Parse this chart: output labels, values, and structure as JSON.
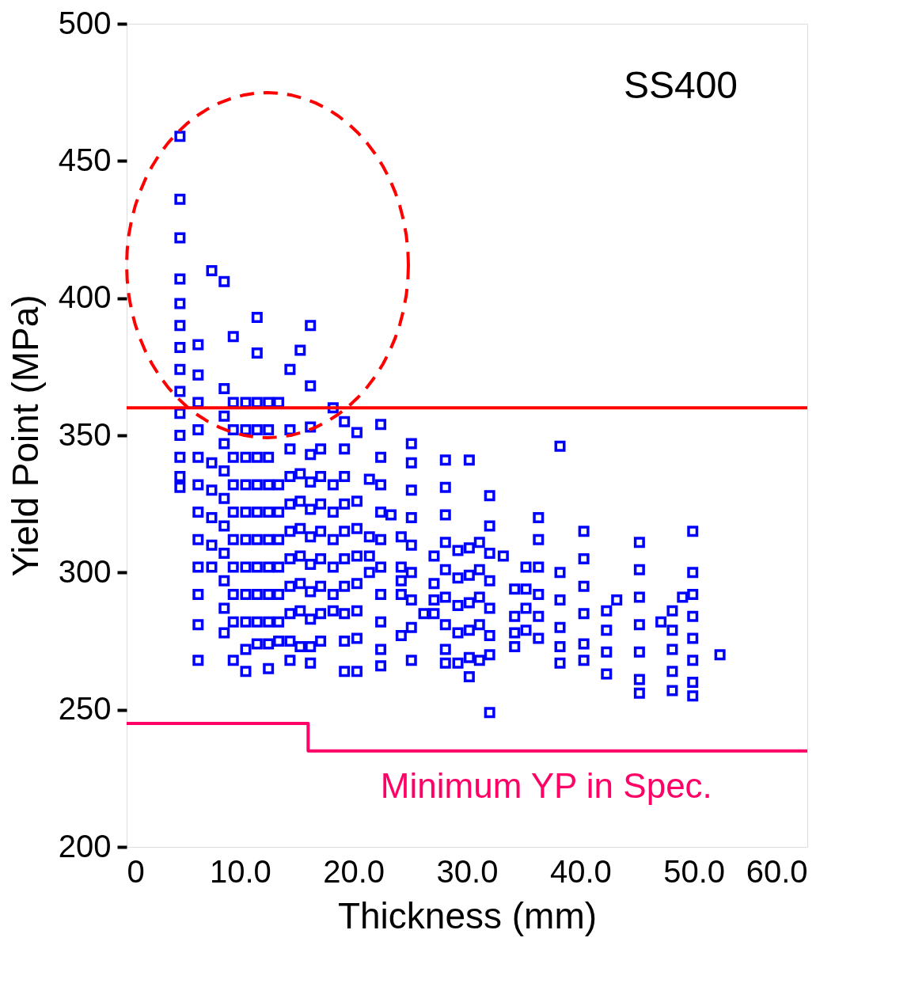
{
  "chart_data": {
    "type": "scatter",
    "xlabel": "Thickness (mm)",
    "ylabel": "Yield Point (MPa)",
    "xlim": [
      0,
      60
    ],
    "ylim": [
      200,
      500
    ],
    "xticks": [
      0,
      {
        "value": 10,
        "label": "10.0"
      },
      {
        "value": 20,
        "label": "20.0"
      },
      {
        "value": 30,
        "label": "30.0"
      },
      {
        "value": 40,
        "label": "40.0"
      },
      {
        "value": 50,
        "label": "50.0"
      },
      {
        "value": 60,
        "label": "60.0"
      }
    ],
    "yticks": [
      200,
      250,
      300,
      350,
      400,
      450,
      500
    ],
    "grid": false,
    "marker": "square",
    "annotations": [
      "SS400",
      {
        "text": "Minimum YP in Spec.",
        "x": 37,
        "y": 235
      }
    ],
    "ref_lines": [
      {
        "axis": "y",
        "value": 360,
        "color": "#ff0000"
      }
    ],
    "series": [
      {
        "color": "#0000ff",
        "x": [
          4.7,
          4.7,
          4.7,
          4.7,
          4.7,
          4.7,
          4.7,
          4.7,
          4.7,
          4.7,
          4.7,
          4.7,
          4.7,
          4.7
        ],
        "values": [
          459,
          436,
          422,
          407,
          398,
          390,
          382,
          374,
          366,
          358,
          350,
          342,
          335,
          331
        ]
      },
      {
        "color": "#0000ff",
        "x": [
          6.3,
          6.3,
          6.3,
          6.3,
          6.3,
          6.3,
          6.3,
          6.3,
          6.3,
          6.3,
          6.3,
          6.3
        ],
        "values": [
          383,
          372,
          362,
          352,
          342,
          332,
          322,
          312,
          302,
          292,
          281,
          268
        ]
      },
      {
        "color": "#0000ff",
        "x": [
          7.5,
          7.5,
          7.5,
          7.5,
          7.5,
          7.5
        ],
        "values": [
          410,
          340,
          330,
          320,
          310,
          302
        ]
      },
      {
        "color": "#0000ff",
        "x": [
          8.6,
          8.6,
          8.6,
          8.6,
          8.6,
          8.6,
          8.6,
          8.6,
          8.6,
          8.6,
          8.6
        ],
        "values": [
          406,
          367,
          357,
          347,
          337,
          327,
          317,
          307,
          297,
          287,
          278
        ]
      },
      {
        "color": "#0000ff",
        "x": [
          9.4,
          9.4,
          9.4,
          9.4,
          9.4,
          9.4,
          9.4,
          9.4,
          9.4,
          9.4,
          9.4
        ],
        "values": [
          386,
          362,
          352,
          342,
          332,
          322,
          312,
          302,
          292,
          282,
          268
        ]
      },
      {
        "color": "#0000ff",
        "x": [
          10.5,
          10.5,
          10.5,
          10.5,
          10.5,
          10.5,
          10.5,
          10.5,
          10.5,
          10.5,
          10.5
        ],
        "values": [
          362,
          352,
          342,
          332,
          322,
          312,
          302,
          292,
          282,
          272,
          264
        ]
      },
      {
        "color": "#0000ff",
        "x": [
          11.5,
          11.5,
          11.5,
          11.5,
          11.5,
          11.5,
          11.5,
          11.5,
          11.5,
          11.5,
          11.5,
          11.5
        ],
        "values": [
          393,
          380,
          362,
          352,
          342,
          332,
          322,
          312,
          302,
          292,
          282,
          274
        ]
      },
      {
        "color": "#0000ff",
        "x": [
          12.5,
          12.5,
          12.5,
          12.5,
          12.5,
          12.5,
          12.5,
          12.5,
          12.5,
          12.5,
          12.5
        ],
        "values": [
          362,
          352,
          342,
          332,
          322,
          312,
          302,
          292,
          282,
          274,
          265
        ]
      },
      {
        "color": "#0000ff",
        "x": [
          13.4,
          13.4,
          13.4,
          13.4,
          13.4,
          13.4,
          13.4,
          13.4
        ],
        "values": [
          362,
          332,
          322,
          312,
          302,
          292,
          282,
          275
        ]
      },
      {
        "color": "#0000ff",
        "x": [
          14.4,
          14.4,
          14.4,
          14.4,
          14.4,
          14.4,
          14.4,
          14.4,
          14.4,
          14.4,
          14.4
        ],
        "values": [
          374,
          352,
          345,
          335,
          325,
          315,
          305,
          295,
          285,
          275,
          268
        ]
      },
      {
        "color": "#0000ff",
        "x": [
          15.3,
          15.3,
          15.3,
          15.3,
          15.3,
          15.3,
          15.3,
          15.3
        ],
        "values": [
          381,
          336,
          326,
          316,
          306,
          296,
          286,
          273
        ]
      },
      {
        "color": "#0000ff",
        "x": [
          16.2,
          16.2,
          16.2,
          16.2,
          16.2,
          16.2,
          16.2,
          16.2,
          16.2,
          16.2,
          16.2,
          16.2
        ],
        "values": [
          390,
          368,
          353,
          343,
          333,
          323,
          313,
          303,
          293,
          283,
          273,
          267
        ]
      },
      {
        "color": "#0000ff",
        "x": [
          17.1,
          17.1,
          17.1,
          17.1,
          17.1,
          17.1,
          17.1,
          17.1
        ],
        "values": [
          345,
          335,
          325,
          315,
          305,
          295,
          285,
          275
        ]
      },
      {
        "color": "#0000ff",
        "x": [
          18.2,
          18.2,
          18.2,
          18.2,
          18.2,
          18.2,
          18.2
        ],
        "values": [
          360,
          332,
          322,
          312,
          302,
          292,
          286
        ]
      },
      {
        "color": "#0000ff",
        "x": [
          19.2,
          19.2,
          19.2,
          19.2,
          19.2,
          19.2,
          19.2,
          19.2,
          19.2,
          19.2
        ],
        "values": [
          355,
          345,
          335,
          325,
          315,
          305,
          295,
          285,
          275,
          264
        ]
      },
      {
        "color": "#0000ff",
        "x": [
          20.3,
          20.3,
          20.3,
          20.3,
          20.3,
          20.3,
          20.3,
          20.3
        ],
        "values": [
          351,
          326,
          316,
          306,
          296,
          286,
          276,
          264
        ]
      },
      {
        "color": "#0000ff",
        "x": [
          21.4,
          21.4,
          21.4,
          21.4
        ],
        "values": [
          334,
          313,
          306,
          300
        ]
      },
      {
        "color": "#0000ff",
        "x": [
          22.4,
          22.4,
          22.4,
          22.4,
          22.4,
          22.4,
          22.4,
          22.4,
          22.4,
          22.4
        ],
        "values": [
          354,
          342,
          332,
          322,
          312,
          302,
          292,
          282,
          272,
          266
        ]
      },
      {
        "color": "#0000ff",
        "x": [
          23.3
        ],
        "values": [
          321
        ]
      },
      {
        "color": "#0000ff",
        "x": [
          24.2,
          24.2,
          24.2,
          24.2,
          24.2
        ],
        "values": [
          313,
          302,
          297,
          292,
          277
        ]
      },
      {
        "color": "#0000ff",
        "x": [
          25.1,
          25.1,
          25.1,
          25.1,
          25.1,
          25.1,
          25.1,
          25.1,
          25.1
        ],
        "values": [
          347,
          340,
          330,
          320,
          310,
          300,
          290,
          280,
          268
        ]
      },
      {
        "color": "#0000ff",
        "x": [
          26.2
        ],
        "values": [
          285
        ]
      },
      {
        "color": "#0000ff",
        "x": [
          27.1,
          27.1,
          27.1,
          27.1
        ],
        "values": [
          306,
          296,
          290,
          285
        ]
      },
      {
        "color": "#0000ff",
        "x": [
          28.1,
          28.1,
          28.1,
          28.1,
          28.1,
          28.1,
          28.1,
          28.1,
          28.1
        ],
        "values": [
          341,
          331,
          321,
          311,
          301,
          291,
          281,
          272,
          267
        ]
      },
      {
        "color": "#0000ff",
        "x": [
          29.2,
          29.2,
          29.2,
          29.2,
          29.2
        ],
        "values": [
          308,
          298,
          288,
          278,
          267
        ]
      },
      {
        "color": "#0000ff",
        "x": [
          30.2,
          30.2,
          30.2,
          30.2,
          30.2,
          30.2,
          30.2
        ],
        "values": [
          341,
          309,
          299,
          289,
          279,
          269,
          262
        ]
      },
      {
        "color": "#0000ff",
        "x": [
          31.1,
          31.1,
          31.1,
          31.1,
          31.1
        ],
        "values": [
          311,
          301,
          291,
          281,
          268
        ]
      },
      {
        "color": "#0000ff",
        "x": [
          32.0,
          32.0,
          32.0,
          32.0,
          32.0,
          32.0,
          32.0,
          32.0
        ],
        "values": [
          328,
          317,
          307,
          297,
          287,
          277,
          270,
          249
        ]
      },
      {
        "color": "#0000ff",
        "x": [
          33.2
        ],
        "values": [
          306
        ]
      },
      {
        "color": "#0000ff",
        "x": [
          34.2,
          34.2,
          34.2,
          34.2
        ],
        "values": [
          294,
          284,
          278,
          273
        ]
      },
      {
        "color": "#0000ff",
        "x": [
          35.2,
          35.2,
          35.2,
          35.2
        ],
        "values": [
          302,
          294,
          287,
          279
        ]
      },
      {
        "color": "#0000ff",
        "x": [
          36.3,
          36.3,
          36.3,
          36.3,
          36.3,
          36.3
        ],
        "values": [
          320,
          312,
          302,
          292,
          284,
          276
        ]
      },
      {
        "color": "#0000ff",
        "x": [
          38.2,
          38.2,
          38.2,
          38.2,
          38.2,
          38.2
        ],
        "values": [
          346,
          300,
          290,
          280,
          273,
          267
        ]
      },
      {
        "color": "#0000ff",
        "x": [
          40.3,
          40.3,
          40.3,
          40.3,
          40.3,
          40.3
        ],
        "values": [
          315,
          305,
          295,
          285,
          274,
          268
        ]
      },
      {
        "color": "#0000ff",
        "x": [
          42.3,
          42.3,
          42.3,
          42.3
        ],
        "values": [
          286,
          279,
          271,
          263
        ]
      },
      {
        "color": "#0000ff",
        "x": [
          43.2
        ],
        "values": [
          290
        ]
      },
      {
        "color": "#0000ff",
        "x": [
          45.2,
          45.2,
          45.2,
          45.2,
          45.2,
          45.2,
          45.2
        ],
        "values": [
          311,
          301,
          291,
          281,
          271,
          261,
          256
        ]
      },
      {
        "color": "#0000ff",
        "x": [
          47.1
        ],
        "values": [
          282
        ]
      },
      {
        "color": "#0000ff",
        "x": [
          48.1,
          48.1,
          48.1,
          48.1,
          48.1
        ],
        "values": [
          286,
          279,
          272,
          264,
          257
        ]
      },
      {
        "color": "#0000ff",
        "x": [
          49.0
        ],
        "values": [
          291
        ]
      },
      {
        "color": "#0000ff",
        "x": [
          49.9,
          49.9,
          49.9,
          49.9,
          49.9,
          49.9,
          49.9,
          49.9
        ],
        "values": [
          315,
          300,
          292,
          284,
          276,
          268,
          260,
          255
        ]
      },
      {
        "color": "#0000ff",
        "x": [
          52.3
        ],
        "values": [
          270
        ]
      },
      {
        "type": "step",
        "marker": "none",
        "line_style": "solid",
        "color": "#ff0066",
        "x": [
          0,
          16,
          60
        ],
        "values": [
          245,
          235,
          235
        ]
      }
    ]
  }
}
